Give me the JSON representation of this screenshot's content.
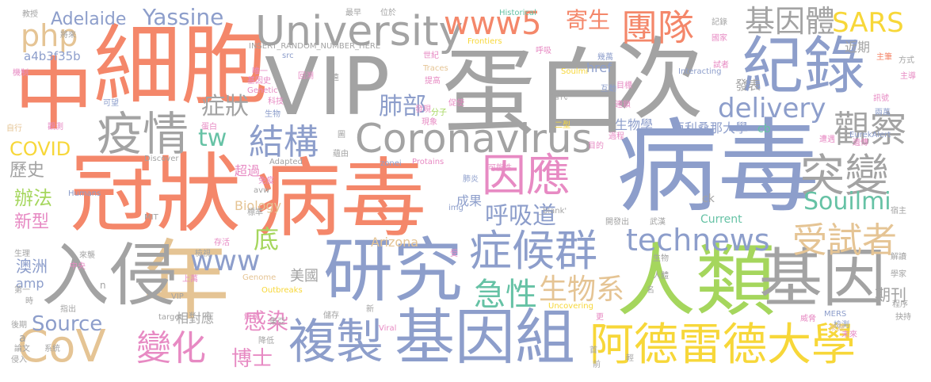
{
  "colors": {
    "orange": "#f4876a",
    "gray": "#a3a3a3",
    "blue": "#8d9ecb",
    "green": "#a5d65d",
    "pink": "#e78ac3",
    "yellow": "#f7d739",
    "tan": "#e5c494",
    "teal": "#66c2a5"
  },
  "words": [
    {
      "text": "病毒",
      "color": "#8d9ecb",
      "level": 5
    },
    {
      "text": "冠狀",
      "color": "#f4876a",
      "level": 5
    },
    {
      "text": "病毒",
      "color": "#f4876a",
      "level": 5
    },
    {
      "text": "蛋白",
      "color": "#a3a3a3",
      "level": 5
    },
    {
      "text": "細胞",
      "color": "#f4876a",
      "level": 5
    },
    {
      "text": "VIP",
      "color": "#a3a3a3",
      "level": 5
    },
    {
      "text": "次",
      "color": "#a3a3a3",
      "level": 5
    },
    {
      "text": "中",
      "color": "#f4876a",
      "level": 5
    },
    {
      "text": "人類",
      "color": "#a5d65d",
      "level": 5
    },
    {
      "text": "年",
      "color": "#e5c494",
      "level": 5
    },
    {
      "text": "入侵",
      "color": "#a3a3a3",
      "level": 4
    },
    {
      "text": "研究",
      "color": "#8d9ecb",
      "level": 4
    },
    {
      "text": "基因組",
      "color": "#8d9ecb",
      "level": 4
    },
    {
      "text": "基因",
      "color": "#a3a3a3",
      "level": 4
    },
    {
      "text": "紀錄",
      "color": "#8d9ecb",
      "level": 4
    },
    {
      "text": "阿德雷德大學",
      "color": "#f7d739",
      "level": 3
    },
    {
      "text": "複製",
      "color": "#8d9ecb",
      "level": 3
    },
    {
      "text": "CoV",
      "color": "#e5c494",
      "level": 3
    },
    {
      "text": "University",
      "color": "#a3a3a3",
      "level": 3
    },
    {
      "text": "Coronavirus",
      "color": "#a3a3a3",
      "level": 3
    },
    {
      "text": "疫情",
      "color": "#a3a3a3",
      "level": 3
    },
    {
      "text": "症候群",
      "color": "#8d9ecb",
      "level": 3
    },
    {
      "text": "因應",
      "color": "#e78ac3",
      "level": 3
    },
    {
      "text": "突變",
      "color": "#a3a3a3",
      "level": 3
    },
    {
      "text": "團隊",
      "color": "#f4876a",
      "level": 2
    },
    {
      "text": "www5",
      "color": "#f4876a",
      "level": 2
    },
    {
      "text": "觀察",
      "color": "#a3a3a3",
      "level": 2
    },
    {
      "text": "變化",
      "color": "#e78ac3",
      "level": 2
    },
    {
      "text": "結構",
      "color": "#8d9ecb",
      "level": 2
    },
    {
      "text": "technews",
      "color": "#8d9ecb",
      "level": 2
    },
    {
      "text": "www",
      "color": "#8d9ecb",
      "level": 2
    },
    {
      "text": "受試者",
      "color": "#e5c494",
      "level": 2
    },
    {
      "text": "delivery",
      "color": "#8d9ecb",
      "level": 2
    },
    {
      "text": "基因體",
      "color": "#a3a3a3",
      "level": 2
    },
    {
      "text": "SARS",
      "color": "#f7d739",
      "level": 2
    },
    {
      "text": "急性",
      "color": "#66c2a5",
      "level": 2
    },
    {
      "text": "生物系",
      "color": "#e5c494",
      "level": 2
    },
    {
      "text": "呼吸道",
      "color": "#8d9ecb",
      "level": 2
    },
    {
      "text": "php",
      "color": "#e5c494",
      "level": 2
    },
    {
      "text": "症狀",
      "color": "#a3a3a3",
      "level": 2
    },
    {
      "text": "tw",
      "color": "#66c2a5",
      "level": 2
    },
    {
      "text": "肺部",
      "color": "#8d9ecb",
      "level": 2
    },
    {
      "text": "底",
      "color": "#a5d65d",
      "level": 2
    },
    {
      "text": "Souilmi",
      "color": "#66c2a5",
      "level": 2
    },
    {
      "text": "Yassine",
      "color": "#8d9ecb",
      "level": 2
    },
    {
      "text": "寄生",
      "color": "#f4876a",
      "level": 2
    },
    {
      "text": "Source",
      "color": "#8d9ecb",
      "level": 2
    },
    {
      "text": "博士",
      "color": "#e78ac3",
      "level": 2
    },
    {
      "text": "感染",
      "color": "#e78ac3",
      "level": 2
    },
    {
      "text": "COVID",
      "color": "#f7d739",
      "level": 1
    },
    {
      "text": "歷史",
      "color": "#a3a3a3",
      "level": 1
    },
    {
      "text": "辦法",
      "color": "#a5d65d",
      "level": 1
    },
    {
      "text": "新型",
      "color": "#e78ac3",
      "level": 1
    },
    {
      "text": "Adelaide",
      "color": "#8d9ecb",
      "level": 1
    },
    {
      "text": "a4b3f35b",
      "color": "#8d9ecb",
      "level": 1
    },
    {
      "text": "期刊",
      "color": "#a3a3a3",
      "level": 1
    },
    {
      "text": "亞利桑那大學",
      "color": "#8d9ecb",
      "level": 1
    },
    {
      "text": "生物學",
      "color": "#8d9ecb",
      "level": 1
    },
    {
      "text": "澳洲",
      "color": "#8d9ecb",
      "level": 1
    },
    {
      "text": "美國",
      "color": "#a3a3a3",
      "level": 1
    },
    {
      "text": "相對應",
      "color": "#a3a3a3",
      "level": 1
    },
    {
      "text": "Biology",
      "color": "#e5c494",
      "level": 1
    },
    {
      "text": "Arizona",
      "color": "#e5c494",
      "level": 1
    },
    {
      "text": "Current",
      "color": "#66c2a5",
      "level": 1
    },
    {
      "text": "成果",
      "color": "#8d9ecb",
      "level": 1
    },
    {
      "text": "超過",
      "color": "#e78ac3",
      "level": 1
    },
    {
      "text": "發表",
      "color": "#a3a3a3",
      "level": 1
    },
    {
      "text": "近期",
      "color": "#a3a3a3",
      "level": 1
    },
    {
      "text": "cb",
      "color": "#66c2a5",
      "level": 1
    },
    {
      "text": "ck",
      "color": "#a3a3a3",
      "level": 1
    },
    {
      "text": "href",
      "color": "#8d9ecb",
      "level": 1
    },
    {
      "text": "amp",
      "color": "#8d9ecb",
      "level": 1
    },
    {
      "text": "教授",
      "color": "#a3a3a3",
      "level": 0
    },
    {
      "text": "將來",
      "color": "#a3a3a3",
      "level": 0
    },
    {
      "text": "機制",
      "color": "#e78ac3",
      "level": 0
    },
    {
      "text": "可望",
      "color": "#8d9ecb",
      "level": 0
    },
    {
      "text": "自行",
      "color": "#e5c494",
      "level": 0
    },
    {
      "text": "觀測",
      "color": "#e78ac3",
      "level": 0
    },
    {
      "text": "唯一",
      "color": "#e78ac3",
      "level": 0
    },
    {
      "text": "基因史",
      "color": "#e78ac3",
      "level": 0
    },
    {
      "text": "Genetic",
      "color": "#e78ac3",
      "level": 0
    },
    {
      "text": "科技",
      "color": "#e78ac3",
      "level": 0
    },
    {
      "text": "生物",
      "color": "#8d9ecb",
      "level": 0
    },
    {
      "text": "蛋白",
      "color": "#e78ac3",
      "level": 0
    },
    {
      "text": "src",
      "color": "#8d9ecb",
      "level": 0
    },
    {
      "text": "回溯",
      "color": "#e78ac3",
      "level": 0
    },
    {
      "text": "INSERT_RANDOM_NUMBER_HERE",
      "color": "#a3a3a3",
      "level": 0
    },
    {
      "text": "最早",
      "color": "#a3a3a3",
      "level": 0
    },
    {
      "text": "位於",
      "color": "#a3a3a3",
      "level": 0
    },
    {
      "text": "Historical",
      "color": "#66c2a5",
      "level": 0
    },
    {
      "text": "Frontiers",
      "color": "#f7d739",
      "level": 0
    },
    {
      "text": "呼吸",
      "color": "#e78ac3",
      "level": 0
    },
    {
      "text": "幾萬",
      "color": "#8d9ecb",
      "level": 0
    },
    {
      "text": "互動",
      "color": "#8d9ecb",
      "level": 0
    },
    {
      "text": "世紀",
      "color": "#e78ac3",
      "level": 0
    },
    {
      "text": "Traces",
      "color": "#e5c494",
      "level": 0
    },
    {
      "text": "提高",
      "color": "#e78ac3",
      "level": 0
    },
    {
      "text": "Soulmi",
      "color": "#f7d739",
      "level": 0
    },
    {
      "text": "Interacting",
      "color": "#8d9ecb",
      "level": 0
    },
    {
      "text": "記錄",
      "color": "#a3a3a3",
      "level": 0
    },
    {
      "text": "國家",
      "color": "#e78ac3",
      "level": 0
    },
    {
      "text": "試者",
      "color": "#e78ac3",
      "level": 0
    },
    {
      "text": "主筆",
      "color": "#f4876a",
      "level": 0
    },
    {
      "text": "方式",
      "color": "#a3a3a3",
      "level": 0
    },
    {
      "text": "主導",
      "color": "#e78ac3",
      "level": 0
    },
    {
      "text": "訊號",
      "color": "#e78ac3",
      "level": 0
    },
    {
      "text": "兩萬",
      "color": "#8d9ecb",
      "level": 0
    },
    {
      "text": "目標",
      "color": "#e78ac3",
      "level": 0
    },
    {
      "text": "連鎖",
      "color": "#e78ac3",
      "level": 0
    },
    {
      "text": "當代",
      "color": "#a3a3a3",
      "level": 0
    },
    {
      "text": "遠",
      "color": "#a3a3a3",
      "level": 0
    },
    {
      "text": "發現",
      "color": "#e78ac3",
      "level": 0
    },
    {
      "text": "現象",
      "color": "#e78ac3",
      "level": 0
    },
    {
      "text": "促使",
      "color": "#e78ac3",
      "level": 0
    },
    {
      "text": "分子",
      "color": "#a5d65d",
      "level": 0
    },
    {
      "text": "二型",
      "color": "#f7d739",
      "level": 0
    },
    {
      "text": "過程",
      "color": "#e78ac3",
      "level": 0
    },
    {
      "text": "目的",
      "color": "#e78ac3",
      "level": 0
    },
    {
      "text": "Protains",
      "color": "#e78ac3",
      "level": 0
    },
    {
      "text": "蘊由",
      "color": "#a3a3a3",
      "level": 0
    },
    {
      "text": "Discover",
      "color": "#a3a3a3",
      "level": 0
    },
    {
      "text": "Adapted",
      "color": "#a3a3a3",
      "level": 0
    },
    {
      "text": "zonei",
      "color": "#8d9ecb",
      "level": 0
    },
    {
      "text": "肺炎",
      "color": "#8d9ecb",
      "level": 0
    },
    {
      "text": "免疫",
      "color": "#e78ac3",
      "level": 0
    },
    {
      "text": "avw",
      "color": "#a3a3a3",
      "level": 0
    },
    {
      "text": "Humans",
      "color": "#8d9ecb",
      "level": 0
    },
    {
      "text": "MIT",
      "color": "#a3a3a3",
      "level": 0
    },
    {
      "text": "標準",
      "color": "#a3a3a3",
      "level": 0
    },
    {
      "text": "可能性",
      "color": "#e78ac3",
      "level": 0
    },
    {
      "text": "img",
      "color": "#8d9ecb",
      "level": 0
    },
    {
      "text": "_blank'",
      "color": "#a3a3a3",
      "level": 0
    },
    {
      "text": "開發出",
      "color": "#a3a3a3",
      "level": 0
    },
    {
      "text": "武漢",
      "color": "#a3a3a3",
      "level": 0
    },
    {
      "text": "宿主",
      "color": "#a3a3a3",
      "level": 0
    },
    {
      "text": "遺傳",
      "color": "#e78ac3",
      "level": 0
    },
    {
      "text": "遭遇",
      "color": "#e78ac3",
      "level": 0
    },
    {
      "text": "EurekAlert",
      "color": "#8d9ecb",
      "level": 0
    },
    {
      "text": "存活",
      "color": "#e78ac3",
      "level": 0
    },
    {
      "text": "受",
      "color": "#e78ac3",
      "level": 0
    },
    {
      "text": "生理",
      "color": "#a3a3a3",
      "level": 0
    },
    {
      "text": "來襲",
      "color": "#a3a3a3",
      "level": 0
    },
    {
      "text": "中央",
      "color": "#e78ac3",
      "level": 0
    },
    {
      "text": "第一",
      "color": "#a3a3a3",
      "level": 0
    },
    {
      "text": "時",
      "color": "#a3a3a3",
      "level": 0
    },
    {
      "text": "檢視",
      "color": "#a3a3a3",
      "level": 0
    },
    {
      "text": "上萬",
      "color": "#e78ac3",
      "level": 0
    },
    {
      "text": "Genome",
      "color": "#e5c494",
      "level": 0
    },
    {
      "text": "Outbreaks",
      "color": "#f7d739",
      "level": 0
    },
    {
      "text": "東亞",
      "color": "#a3a3a3",
      "level": 0
    },
    {
      "text": "解釋",
      "color": "#e78ac3",
      "level": 0
    },
    {
      "text": "VIP",
      "color": "#a3a3a3",
      "level": 0
    },
    {
      "text": "指出",
      "color": "#a3a3a3",
      "level": 0
    },
    {
      "text": "n",
      "color": "#a3a3a3",
      "level": 0
    },
    {
      "text": "target",
      "color": "#a3a3a3",
      "level": 0
    },
    {
      "text": "後期",
      "color": "#a3a3a3",
      "level": 0
    },
    {
      "text": "a",
      "color": "#a3a3a3",
      "level": 0
    },
    {
      "text": "論文",
      "color": "#a3a3a3",
      "level": 0
    },
    {
      "text": "系統",
      "color": "#a3a3a3",
      "level": 0
    },
    {
      "text": "侵入",
      "color": "#a3a3a3",
      "level": 0
    },
    {
      "text": "降低",
      "color": "#a3a3a3",
      "level": 0
    },
    {
      "text": "儲存",
      "color": "#a3a3a3",
      "level": 0
    },
    {
      "text": "新",
      "color": "#a3a3a3",
      "level": 0
    },
    {
      "text": "Viral",
      "color": "#e78ac3",
      "level": 0
    },
    {
      "text": "Uncovering",
      "color": "#f7d739",
      "level": 0
    },
    {
      "text": "更",
      "color": "#e78ac3",
      "level": 0
    },
    {
      "text": "首",
      "color": "#a3a3a3",
      "level": 0
    },
    {
      "text": "前",
      "color": "#a3a3a3",
      "level": 0
    },
    {
      "text": "輕",
      "color": "#a3a3a3",
      "level": 0
    },
    {
      "text": "名",
      "color": "#a3a3a3",
      "level": 0
    },
    {
      "text": "人體",
      "color": "#a3a3a3",
      "level": 0
    },
    {
      "text": "生物",
      "color": "#a3a3a3",
      "level": 0
    },
    {
      "text": "MERS",
      "color": "#8d9ecb",
      "level": 0
    },
    {
      "text": "檢測",
      "color": "#8d9ecb",
      "level": 0
    },
    {
      "text": "來源",
      "color": "#e5c494",
      "level": 0
    },
    {
      "text": "威脅",
      "color": "#e78ac3",
      "level": 0
    },
    {
      "text": "未來",
      "color": "#e78ac3",
      "level": 0
    },
    {
      "text": "學家",
      "color": "#a3a3a3",
      "level": 0
    },
    {
      "text": "程序",
      "color": "#a3a3a3",
      "level": 0
    },
    {
      "text": "抉持",
      "color": "#a3a3a3",
      "level": 0
    },
    {
      "text": "解讀",
      "color": "#a3a3a3",
      "level": 0
    },
    {
      "text": "圖",
      "color": "#a3a3a3",
      "level": 0
    }
  ]
}
